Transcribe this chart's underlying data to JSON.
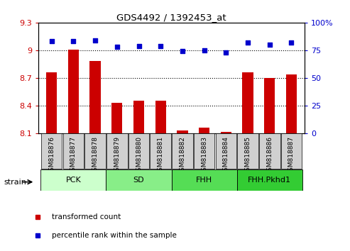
{
  "title": "GDS4492 / 1392453_at",
  "samples": [
    "GSM818876",
    "GSM818877",
    "GSM818878",
    "GSM818879",
    "GSM818880",
    "GSM818881",
    "GSM818882",
    "GSM818883",
    "GSM818884",
    "GSM818885",
    "GSM818886",
    "GSM818887"
  ],
  "red_values": [
    8.76,
    9.01,
    8.88,
    8.43,
    8.45,
    8.45,
    8.13,
    8.16,
    8.11,
    8.76,
    8.7,
    8.74
  ],
  "blue_values": [
    83,
    83,
    84,
    78,
    79,
    79,
    74,
    75,
    73,
    82,
    80,
    82
  ],
  "ylim_left": [
    8.1,
    9.3
  ],
  "ylim_right": [
    0,
    100
  ],
  "yticks_left": [
    8.1,
    8.4,
    8.7,
    9.0,
    9.3
  ],
  "yticks_right": [
    0,
    25,
    50,
    75,
    100
  ],
  "ytick_labels_left": [
    "8.1",
    "8.4",
    "8.7",
    "9",
    "9.3"
  ],
  "ytick_labels_right": [
    "0",
    "25",
    "50",
    "75",
    "100%"
  ],
  "groups": [
    {
      "label": "PCK",
      "start": 0,
      "end": 3,
      "color": "#ccffcc"
    },
    {
      "label": "SD",
      "start": 3,
      "end": 6,
      "color": "#88ee88"
    },
    {
      "label": "FHH",
      "start": 6,
      "end": 9,
      "color": "#55dd55"
    },
    {
      "label": "FHH.Pkhd1",
      "start": 9,
      "end": 12,
      "color": "#33cc33"
    }
  ],
  "bar_color": "#cc0000",
  "dot_color": "#0000cc",
  "left_axis_color": "#cc0000",
  "right_axis_color": "#0000cc",
  "tick_label_bg": "#cccccc",
  "legend_items": [
    {
      "color": "#cc0000",
      "label": "transformed count"
    },
    {
      "color": "#0000cc",
      "label": "percentile rank within the sample"
    }
  ]
}
